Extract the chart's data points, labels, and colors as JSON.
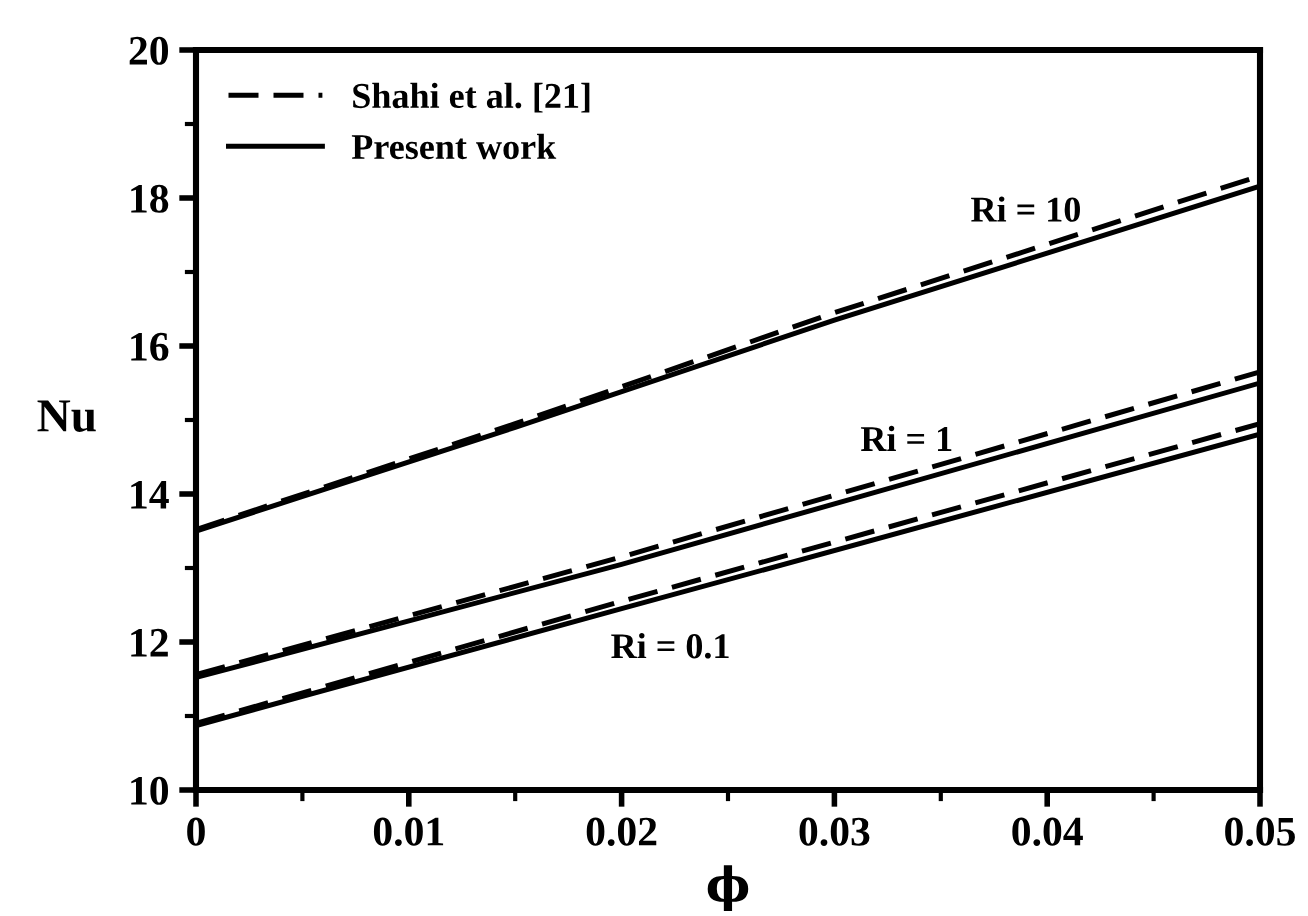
{
  "chart_data": {
    "type": "line",
    "xlabel": "ϕ",
    "ylabel": "Nu",
    "xlim": [
      0,
      0.05
    ],
    "ylim": [
      10,
      20
    ],
    "xticks": [
      {
        "value": 0,
        "label": "0"
      },
      0.01,
      0.02,
      0.03,
      0.04,
      0.05
    ],
    "yticks": [
      10,
      12,
      14,
      16,
      18,
      20
    ],
    "grid": false,
    "legend": "top left",
    "marker": "none",
    "series": [
      {
        "name": "Shahi et al. [21]",
        "color": "#000000",
        "line_style": "dashed",
        "x": [
          0,
          0.015,
          0.03,
          0.05
        ],
        "values": [
          13.52,
          14.95,
          16.45,
          18.3
        ]
      },
      {
        "name": "Present work",
        "color": "#000000",
        "line_style": "solid",
        "x": [
          0,
          0.015,
          0.03,
          0.05
        ],
        "values": [
          13.5,
          14.9,
          16.35,
          18.16
        ]
      },
      {
        "color": "#000000",
        "line_style": "dashed",
        "x": [
          0,
          0.02,
          0.05
        ],
        "values": [
          11.56,
          13.15,
          15.65
        ]
      },
      {
        "color": "#000000",
        "line_style": "solid",
        "x": [
          0,
          0.02,
          0.05
        ],
        "values": [
          11.52,
          13.05,
          15.5
        ]
      },
      {
        "color": "#000000",
        "line_style": "dashed",
        "x": [
          0,
          0.02,
          0.05
        ],
        "values": [
          10.9,
          12.55,
          14.95
        ]
      },
      {
        "color": "#000000",
        "line_style": "solid",
        "x": [
          0,
          0.02,
          0.05
        ],
        "values": [
          10.87,
          12.45,
          14.81
        ]
      }
    ],
    "annotations": [
      "Ri = 10",
      "Ri = 1",
      "Ri = 0.1"
    ]
  }
}
